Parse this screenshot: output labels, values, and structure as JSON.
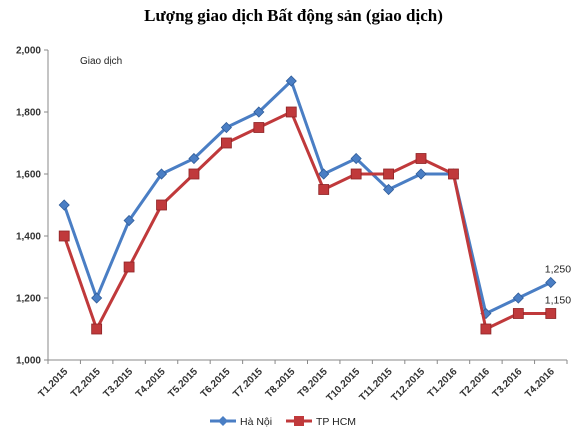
{
  "chart_data": {
    "type": "line",
    "title": "Lượng giao dịch Bất động sản (giao dịch)",
    "annotation": "Giao dịch",
    "x": [
      "T1.2015",
      "T2.2015",
      "T3.2015",
      "T4.2015",
      "T5.2015",
      "T6.2015",
      "T7.2015",
      "T8.2015",
      "T9.2015",
      "T10.2015",
      "T11.2015",
      "T12.2015",
      "T1.2016",
      "T2.2016",
      "T3.2016",
      "T4.2016"
    ],
    "series": [
      {
        "name": "Hà Nội",
        "color": "#4a7ec4",
        "marker": "diamond",
        "values": [
          1500,
          1200,
          1450,
          1600,
          1650,
          1750,
          1800,
          1900,
          1600,
          1650,
          1550,
          1600,
          1600,
          1150,
          1200,
          1250
        ],
        "end_label": "1,250"
      },
      {
        "name": "TP HCM",
        "color": "#c0393b",
        "marker": "square",
        "values": [
          1400,
          1100,
          1300,
          1500,
          1600,
          1700,
          1750,
          1800,
          1550,
          1600,
          1600,
          1650,
          1600,
          1100,
          1150,
          1150
        ],
        "end_label": "1,150"
      }
    ],
    "ylim": [
      1000,
      2000
    ],
    "yticks": [
      1000,
      1200,
      1400,
      1600,
      1800,
      2000
    ],
    "ytick_labels": [
      "1,000",
      "1,200",
      "1,400",
      "1,600",
      "1,800",
      "2,000"
    ],
    "grid": false,
    "legend": "bottom-center"
  }
}
